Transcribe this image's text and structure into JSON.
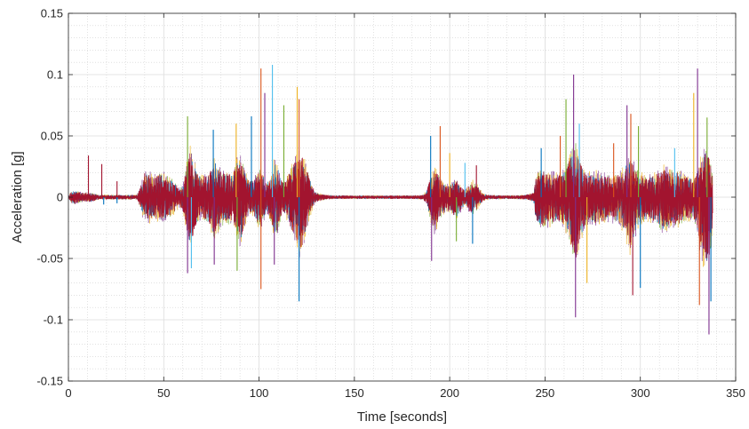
{
  "chart_data": {
    "type": "line",
    "title": "",
    "xlabel": "Time [seconds]",
    "ylabel": "Acceleration [g]",
    "xlim": [
      0,
      350
    ],
    "ylim": [
      -0.15,
      0.15
    ],
    "x_ticks": [
      0,
      50,
      100,
      150,
      200,
      250,
      300,
      350
    ],
    "y_ticks": [
      0.15,
      0.1,
      0.05,
      0,
      -0.05,
      -0.1,
      -0.15
    ],
    "x_tick_labels": [
      "0",
      "50",
      "100",
      "150",
      "200",
      "250",
      "300",
      "350"
    ],
    "y_tick_labels": [
      "0.15",
      "0.1",
      "0.05",
      "0",
      "-0.05",
      "-0.1",
      "-0.15"
    ],
    "grid": true,
    "minor_grid": true,
    "legend": "none",
    "series_colors": [
      "#a2142f",
      "#0072bd",
      "#d95319",
      "#edb120",
      "#7e2f8e",
      "#77ac30",
      "#4dbeee"
    ],
    "envelope": {
      "x": [
        0,
        1,
        3,
        5,
        8,
        10,
        12,
        14,
        16,
        18,
        20,
        24,
        28,
        32,
        36,
        38,
        40,
        45,
        50,
        55,
        58,
        60,
        62,
        64,
        66,
        68,
        70,
        72,
        74,
        76,
        78,
        80,
        82,
        84,
        86,
        88,
        90,
        92,
        94,
        96,
        98,
        100,
        102,
        104,
        106,
        108,
        110,
        112,
        114,
        116,
        118,
        120,
        122,
        124,
        126,
        128,
        130,
        135,
        140,
        150,
        160,
        170,
        180,
        186,
        188,
        190,
        192,
        194,
        196,
        198,
        200,
        202,
        204,
        206,
        208,
        210,
        212,
        214,
        216,
        218,
        220,
        230,
        240,
        244,
        245,
        248,
        252,
        256,
        260,
        262,
        264,
        266,
        268,
        270,
        272,
        276,
        280,
        284,
        288,
        292,
        294,
        296,
        298,
        300,
        304,
        308,
        312,
        316,
        320,
        324,
        328,
        330,
        332,
        334,
        336,
        338
      ],
      "upper": [
        0.0005,
        0.004,
        0.006,
        0.005,
        0.004,
        0.004,
        0.004,
        0.003,
        0.002,
        0.002,
        0.002,
        0.002,
        0.002,
        0.002,
        0.002,
        0.01,
        0.022,
        0.02,
        0.02,
        0.015,
        0.008,
        0.01,
        0.028,
        0.042,
        0.03,
        0.02,
        0.018,
        0.02,
        0.022,
        0.034,
        0.028,
        0.024,
        0.022,
        0.022,
        0.02,
        0.03,
        0.036,
        0.026,
        0.016,
        0.014,
        0.018,
        0.024,
        0.02,
        0.012,
        0.018,
        0.032,
        0.026,
        0.014,
        0.014,
        0.022,
        0.03,
        0.036,
        0.04,
        0.03,
        0.02,
        0.01,
        0.004,
        0.002,
        0.0015,
        0.0015,
        0.0015,
        0.0015,
        0.0015,
        0.002,
        0.006,
        0.018,
        0.026,
        0.02,
        0.014,
        0.012,
        0.01,
        0.014,
        0.016,
        0.01,
        0.006,
        0.01,
        0.014,
        0.012,
        0.006,
        0.003,
        0.002,
        0.0015,
        0.002,
        0.004,
        0.018,
        0.024,
        0.022,
        0.02,
        0.022,
        0.03,
        0.04,
        0.046,
        0.036,
        0.024,
        0.02,
        0.022,
        0.02,
        0.018,
        0.02,
        0.026,
        0.036,
        0.034,
        0.024,
        0.02,
        0.018,
        0.02,
        0.026,
        0.024,
        0.022,
        0.018,
        0.016,
        0.026,
        0.034,
        0.04,
        0.038,
        0.02
      ],
      "lower": [
        -0.0005,
        -0.004,
        -0.006,
        -0.005,
        -0.004,
        -0.004,
        -0.004,
        -0.003,
        -0.002,
        -0.002,
        -0.002,
        -0.002,
        -0.002,
        -0.002,
        -0.002,
        -0.01,
        -0.022,
        -0.02,
        -0.02,
        -0.015,
        -0.008,
        -0.012,
        -0.03,
        -0.044,
        -0.03,
        -0.02,
        -0.018,
        -0.02,
        -0.024,
        -0.036,
        -0.03,
        -0.026,
        -0.022,
        -0.024,
        -0.022,
        -0.03,
        -0.04,
        -0.028,
        -0.016,
        -0.014,
        -0.02,
        -0.026,
        -0.022,
        -0.012,
        -0.02,
        -0.036,
        -0.028,
        -0.014,
        -0.016,
        -0.024,
        -0.036,
        -0.048,
        -0.05,
        -0.034,
        -0.02,
        -0.01,
        -0.004,
        -0.002,
        -0.0015,
        -0.0015,
        -0.0015,
        -0.0015,
        -0.0015,
        -0.002,
        -0.006,
        -0.02,
        -0.03,
        -0.022,
        -0.016,
        -0.012,
        -0.012,
        -0.016,
        -0.018,
        -0.012,
        -0.006,
        -0.012,
        -0.016,
        -0.012,
        -0.006,
        -0.003,
        -0.002,
        -0.0015,
        -0.002,
        -0.004,
        -0.02,
        -0.026,
        -0.024,
        -0.022,
        -0.024,
        -0.034,
        -0.048,
        -0.058,
        -0.042,
        -0.028,
        -0.022,
        -0.024,
        -0.022,
        -0.02,
        -0.022,
        -0.03,
        -0.05,
        -0.046,
        -0.03,
        -0.022,
        -0.02,
        -0.022,
        -0.03,
        -0.026,
        -0.024,
        -0.02,
        -0.018,
        -0.03,
        -0.05,
        -0.06,
        -0.056,
        -0.03
      ]
    },
    "peaks": [
      {
        "x": 10.5,
        "y": 0.034,
        "color": "#a2142f"
      },
      {
        "x": 17.5,
        "y": 0.027,
        "color": "#a2142f"
      },
      {
        "x": 18.5,
        "y": -0.006,
        "color": "#0072bd"
      },
      {
        "x": 25.5,
        "y": 0.013,
        "color": "#a2142f"
      },
      {
        "x": 25.5,
        "y": -0.005,
        "color": "#0072bd"
      },
      {
        "x": 62.5,
        "y": 0.066,
        "color": "#77ac30"
      },
      {
        "x": 62.5,
        "y": -0.062,
        "color": "#7e2f8e"
      },
      {
        "x": 64.5,
        "y": -0.058,
        "color": "#4dbeee"
      },
      {
        "x": 76,
        "y": 0.055,
        "color": "#0072bd"
      },
      {
        "x": 76.5,
        "y": -0.055,
        "color": "#7e2f8e"
      },
      {
        "x": 88,
        "y": 0.06,
        "color": "#edb120"
      },
      {
        "x": 88.5,
        "y": -0.06,
        "color": "#77ac30"
      },
      {
        "x": 96,
        "y": 0.066,
        "color": "#0072bd"
      },
      {
        "x": 101,
        "y": 0.105,
        "color": "#d95319"
      },
      {
        "x": 103,
        "y": 0.085,
        "color": "#7e2f8e"
      },
      {
        "x": 101,
        "y": -0.075,
        "color": "#d95319"
      },
      {
        "x": 107,
        "y": 0.108,
        "color": "#4dbeee"
      },
      {
        "x": 108,
        "y": -0.055,
        "color": "#7e2f8e"
      },
      {
        "x": 113,
        "y": 0.075,
        "color": "#77ac30"
      },
      {
        "x": 120,
        "y": 0.09,
        "color": "#edb120"
      },
      {
        "x": 121,
        "y": 0.08,
        "color": "#d95319"
      },
      {
        "x": 121,
        "y": -0.085,
        "color": "#0072bd"
      },
      {
        "x": 190,
        "y": 0.05,
        "color": "#0072bd"
      },
      {
        "x": 190.5,
        "y": -0.052,
        "color": "#7e2f8e"
      },
      {
        "x": 195,
        "y": 0.058,
        "color": "#d95319"
      },
      {
        "x": 200,
        "y": 0.036,
        "color": "#edb120"
      },
      {
        "x": 203.5,
        "y": -0.036,
        "color": "#77ac30"
      },
      {
        "x": 208,
        "y": 0.028,
        "color": "#4dbeee"
      },
      {
        "x": 212,
        "y": -0.038,
        "color": "#0072bd"
      },
      {
        "x": 214,
        "y": 0.026,
        "color": "#a2142f"
      },
      {
        "x": 248,
        "y": 0.04,
        "color": "#0072bd"
      },
      {
        "x": 258,
        "y": 0.05,
        "color": "#d95319"
      },
      {
        "x": 261,
        "y": 0.08,
        "color": "#77ac30"
      },
      {
        "x": 265,
        "y": 0.1,
        "color": "#7e2f8e"
      },
      {
        "x": 266,
        "y": -0.098,
        "color": "#7e2f8e"
      },
      {
        "x": 268,
        "y": 0.06,
        "color": "#4dbeee"
      },
      {
        "x": 272,
        "y": -0.07,
        "color": "#edb120"
      },
      {
        "x": 286,
        "y": 0.044,
        "color": "#d95319"
      },
      {
        "x": 293,
        "y": 0.075,
        "color": "#7e2f8e"
      },
      {
        "x": 295,
        "y": 0.068,
        "color": "#d95319"
      },
      {
        "x": 296,
        "y": -0.08,
        "color": "#a2142f"
      },
      {
        "x": 299,
        "y": 0.058,
        "color": "#77ac30"
      },
      {
        "x": 300,
        "y": -0.074,
        "color": "#0072bd"
      },
      {
        "x": 318,
        "y": 0.04,
        "color": "#4dbeee"
      },
      {
        "x": 328,
        "y": 0.085,
        "color": "#edb120"
      },
      {
        "x": 330,
        "y": 0.105,
        "color": "#7e2f8e"
      },
      {
        "x": 331,
        "y": -0.088,
        "color": "#d95319"
      },
      {
        "x": 335,
        "y": 0.065,
        "color": "#77ac30"
      },
      {
        "x": 336,
        "y": -0.112,
        "color": "#7e2f8e"
      },
      {
        "x": 337,
        "y": -0.085,
        "color": "#0072bd"
      }
    ]
  }
}
